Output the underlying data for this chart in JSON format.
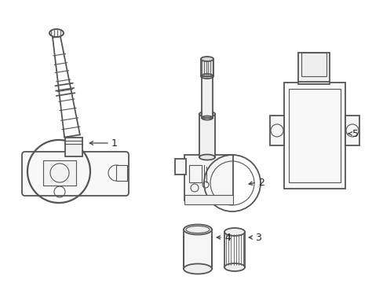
{
  "bg_color": "#ffffff",
  "lc": "#555555",
  "lw": 1.3,
  "tlw": 0.8,
  "figsize": [
    4.89,
    3.6
  ],
  "dpi": 100,
  "arrow_color": "#444444",
  "label_fontsize": 9
}
